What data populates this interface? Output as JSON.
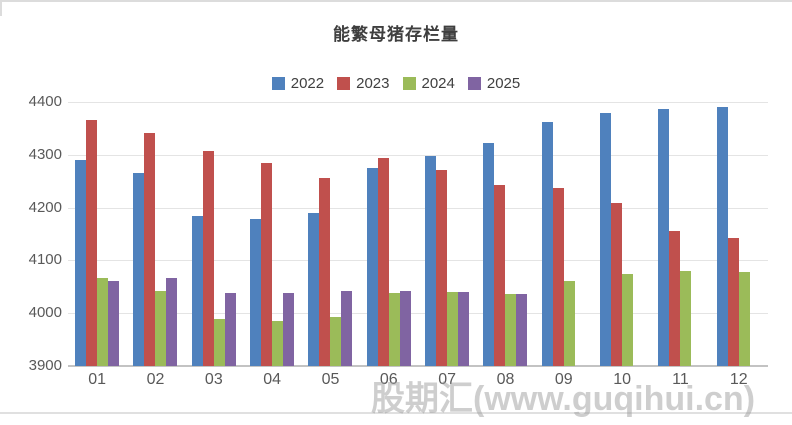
{
  "title": "能繁母猪存栏量",
  "watermark": "股期汇(www.guqihui.cn)",
  "colors": {
    "series_2022": "#4F81BD",
    "series_2023": "#C0504D",
    "series_2024": "#9BBB59",
    "series_2025": "#8064A2",
    "gridline": "#e4e4e4",
    "baseline": "#c3c3c3",
    "axis_text": "#595959",
    "title_text": "#3f3f3f"
  },
  "chart_data": {
    "type": "bar",
    "title": "能繁母猪存栏量",
    "categories": [
      "01",
      "02",
      "03",
      "04",
      "05",
      "06",
      "07",
      "08",
      "09",
      "10",
      "11",
      "12"
    ],
    "series": [
      {
        "name": "2022",
        "color": "#4F81BD",
        "values": [
          4290,
          4266,
          4185,
          4178,
          4190,
          4275,
          4297,
          4323,
          4363,
          4380,
          4387,
          4391
        ]
      },
      {
        "name": "2023",
        "color": "#C0504D",
        "values": [
          4366,
          4342,
          4308,
          4285,
          4257,
          4294,
          4271,
          4242,
          4238,
          4208,
          4156,
          4142
        ]
      },
      {
        "name": "2024",
        "color": "#9BBB59",
        "values": [
          4066,
          4042,
          3990,
          3985,
          3993,
          4038,
          4040,
          4037,
          4062,
          4074,
          4080,
          4078
        ]
      },
      {
        "name": "2025",
        "color": "#8064A2",
        "values": [
          4062,
          4066,
          4038,
          4038,
          4042,
          4043,
          4041,
          4037,
          null,
          null,
          null,
          null
        ]
      }
    ],
    "xlabel": "",
    "ylabel": "",
    "ylim": [
      3900,
      4400
    ],
    "yticks": [
      3900,
      4000,
      4100,
      4200,
      4300,
      4400
    ],
    "grid": true,
    "legend_position": "top"
  }
}
